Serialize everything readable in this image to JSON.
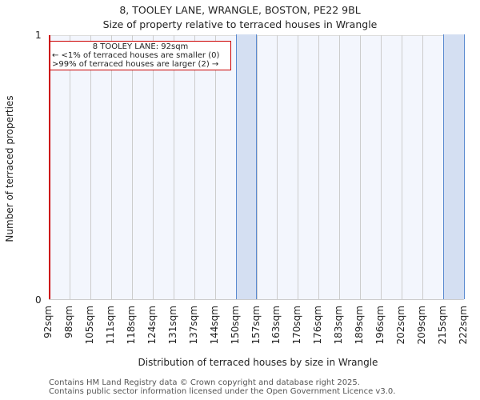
{
  "header": {
    "title": "8, TOOLEY LANE, WRANGLE, BOSTON, PE22 9BL",
    "subtitle": "Size of property relative to terraced houses in Wrangle"
  },
  "axes": {
    "xlabel": "Distribution of terraced houses by size in Wrangle",
    "ylabel": "Number of terraced properties",
    "yticks": [
      "0",
      "1"
    ],
    "xticks": [
      "92sqm",
      "98sqm",
      "105sqm",
      "111sqm",
      "118sqm",
      "124sqm",
      "131sqm",
      "137sqm",
      "144sqm",
      "150sqm",
      "157sqm",
      "163sqm",
      "170sqm",
      "176sqm",
      "183sqm",
      "189sqm",
      "196sqm",
      "202sqm",
      "209sqm",
      "215sqm",
      "222sqm"
    ]
  },
  "annotation": {
    "line1": "8 TOOLEY LANE: 92sqm",
    "line2": "← <1% of terraced houses are smaller (0)",
    "line3": ">99% of terraced houses are larger (2) →"
  },
  "footer": {
    "line1": "Contains HM Land Registry data © Crown copyright and database right 2025.",
    "line2": "Contains public sector information licensed under the Open Government Licence v3.0."
  },
  "colors": {
    "bar_fill": "#d4dff2",
    "bar_edge": "#5a8ad0",
    "marker": "#cc0000",
    "plot_bg": "#f3f6fd"
  },
  "chart_data": {
    "type": "bar",
    "title": "8, TOOLEY LANE, WRANGLE, BOSTON, PE22 9BL — Size of property relative to terraced houses in Wrangle",
    "xlabel": "Distribution of terraced houses by size in Wrangle",
    "ylabel": "Number of terraced properties",
    "categories": [
      "92-98sqm",
      "98-105sqm",
      "105-111sqm",
      "111-118sqm",
      "118-124sqm",
      "124-131sqm",
      "131-137sqm",
      "137-144sqm",
      "144-150sqm",
      "150-157sqm",
      "157-163sqm",
      "163-170sqm",
      "170-176sqm",
      "176-183sqm",
      "183-189sqm",
      "189-196sqm",
      "196-202sqm",
      "202-209sqm",
      "209-215sqm",
      "215-222sqm"
    ],
    "values": [
      0,
      0,
      0,
      0,
      0,
      0,
      0,
      0,
      0,
      1,
      0,
      0,
      0,
      0,
      0,
      0,
      0,
      0,
      0,
      1
    ],
    "ylim": [
      0,
      1
    ],
    "grid": true,
    "marker": {
      "x": "92sqm",
      "label": "8 TOOLEY LANE: 92sqm"
    }
  }
}
